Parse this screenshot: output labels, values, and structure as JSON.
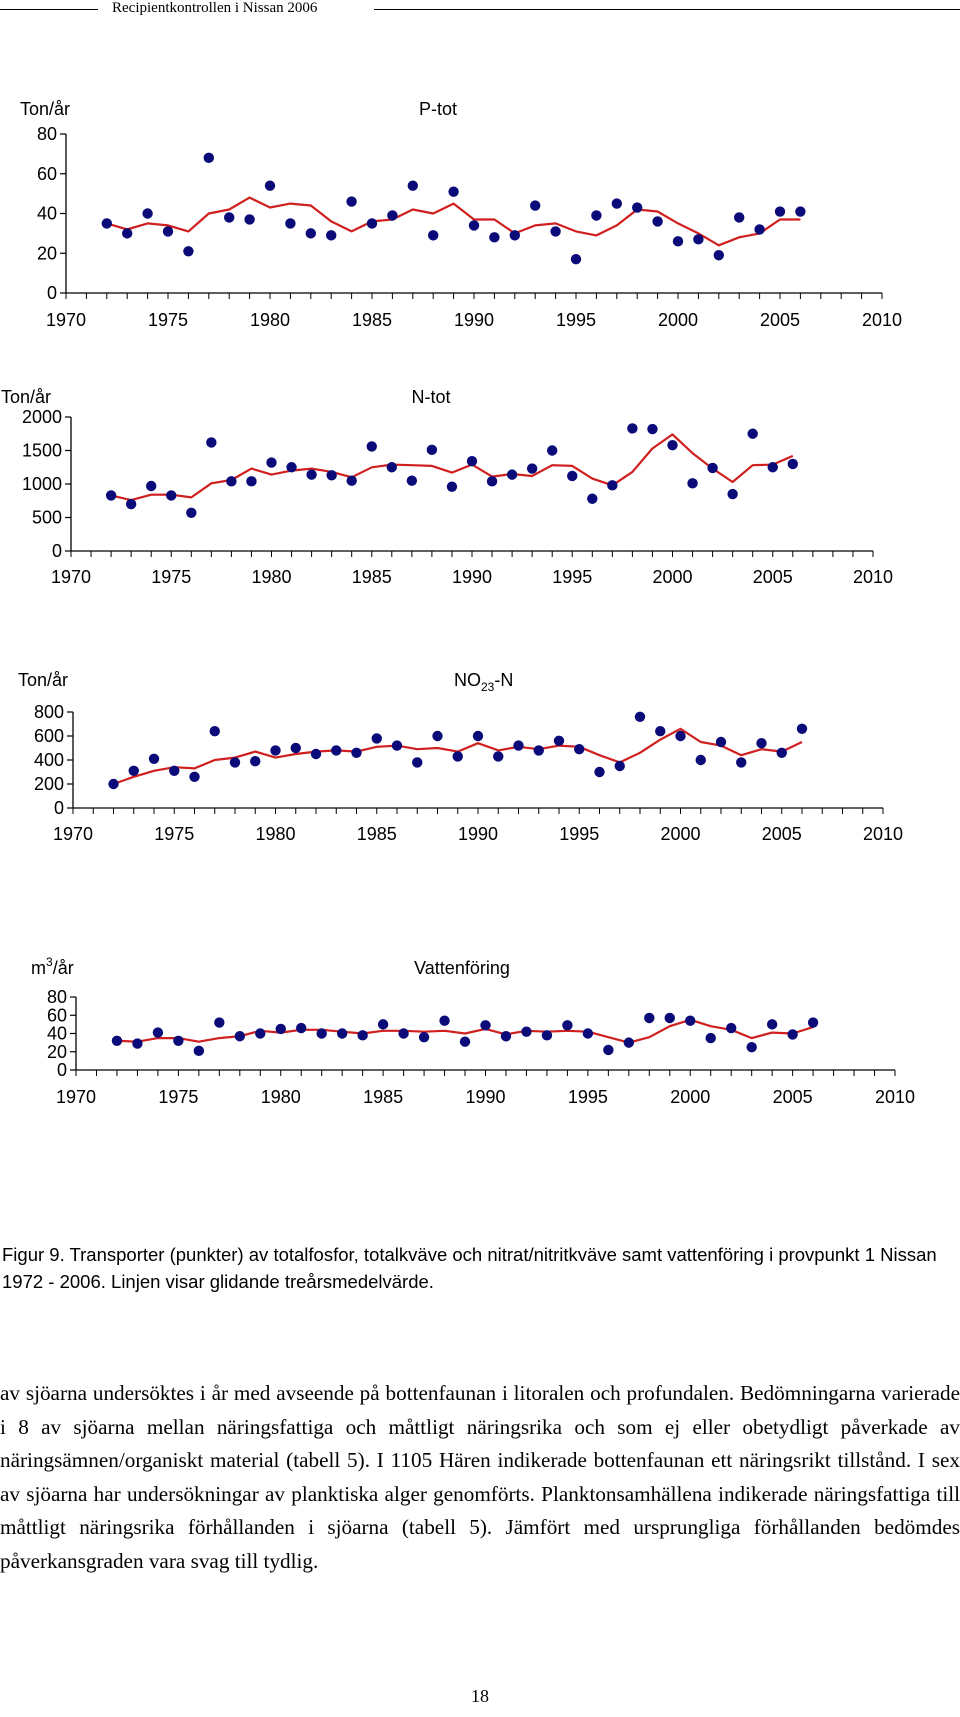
{
  "header": {
    "title": "Recipientkontrollen i Nissan 2006"
  },
  "chart_data": [
    {
      "type": "scatter",
      "title": "P-tot",
      "ylabel": "Ton/år",
      "xlim": [
        1970,
        2010
      ],
      "ylim": [
        0,
        80
      ],
      "yticks": [
        0,
        20,
        40,
        60,
        80
      ],
      "xticks": [
        1970,
        1975,
        1980,
        1985,
        1990,
        1995,
        2000,
        2005,
        2010
      ],
      "series": [
        {
          "name": "Transporter (punkter)",
          "years": [
            1972,
            1973,
            1974,
            1975,
            1976,
            1977,
            1978,
            1979,
            1980,
            1981,
            1982,
            1983,
            1984,
            1985,
            1986,
            1987,
            1988,
            1989,
            1990,
            1991,
            1992,
            1993,
            1994,
            1995,
            1996,
            1997,
            1998,
            1999,
            2000,
            2001,
            2002,
            2003,
            2004,
            2005,
            2006
          ],
          "values": [
            35,
            30,
            40,
            31,
            21,
            68,
            38,
            37,
            54,
            35,
            30,
            29,
            46,
            35,
            39,
            54,
            29,
            51,
            34,
            28,
            29,
            44,
            31,
            17,
            39,
            45,
            43,
            36,
            26,
            27,
            19,
            38,
            32,
            41,
            41
          ]
        },
        {
          "name": "Glidande treårsmedelvärde",
          "years": [
            1972,
            1973,
            1974,
            1975,
            1976,
            1977,
            1978,
            1979,
            1980,
            1981,
            1982,
            1983,
            1984,
            1985,
            1986,
            1987,
            1988,
            1989,
            1990,
            1991,
            1992,
            1993,
            1994,
            1995,
            1996,
            1997,
            1998,
            1999,
            2000,
            2001,
            2002,
            2003,
            2004,
            2005,
            2006
          ],
          "values": [
            35,
            32,
            35,
            34,
            31,
            40,
            42,
            48,
            43,
            45,
            44,
            36,
            31,
            36,
            37,
            42,
            40,
            45,
            37,
            37,
            30,
            34,
            35,
            31,
            29,
            34,
            42,
            41,
            35,
            30,
            24,
            28,
            30,
            37,
            37
          ]
        }
      ]
    },
    {
      "type": "scatter",
      "title": "N-tot",
      "ylabel": "Ton/år",
      "xlim": [
        1970,
        2010
      ],
      "ylim": [
        0,
        2000
      ],
      "yticks": [
        0,
        500,
        1000,
        1500,
        2000
      ],
      "xticks": [
        1970,
        1975,
        1980,
        1985,
        1990,
        1995,
        2000,
        2005,
        2010
      ],
      "series": [
        {
          "name": "Transporter (punkter)",
          "years": [
            1972,
            1973,
            1974,
            1975,
            1976,
            1977,
            1978,
            1979,
            1980,
            1981,
            1982,
            1983,
            1984,
            1985,
            1986,
            1987,
            1988,
            1989,
            1990,
            1991,
            1992,
            1993,
            1994,
            1995,
            1996,
            1997,
            1998,
            1999,
            2000,
            2001,
            2002,
            2003,
            2004,
            2005,
            2006
          ],
          "values": [
            830,
            700,
            970,
            830,
            570,
            1620,
            1040,
            1040,
            1320,
            1250,
            1140,
            1130,
            1050,
            1560,
            1250,
            1050,
            1510,
            960,
            1340,
            1040,
            1140,
            1230,
            1500,
            1120,
            780,
            980,
            1830,
            1820,
            1580,
            1010,
            1240,
            850,
            1750,
            1250,
            1300
          ]
        },
        {
          "name": "Glidande treårsmedelvärde",
          "years": [
            1972,
            1973,
            1974,
            1975,
            1976,
            1977,
            1978,
            1979,
            1980,
            1981,
            1982,
            1983,
            1984,
            1985,
            1986,
            1987,
            1988,
            1989,
            1990,
            1991,
            1992,
            1993,
            1994,
            1995,
            1996,
            1997,
            1998,
            1999,
            2000,
            2001,
            2002,
            2003,
            2004,
            2005,
            2006
          ],
          "values": [
            830,
            760,
            840,
            840,
            800,
            1010,
            1060,
            1230,
            1140,
            1200,
            1230,
            1180,
            1100,
            1250,
            1290,
            1280,
            1270,
            1170,
            1290,
            1110,
            1150,
            1120,
            1280,
            1270,
            1080,
            980,
            1180,
            1530,
            1740,
            1460,
            1230,
            1030,
            1280,
            1290,
            1420
          ]
        }
      ]
    },
    {
      "type": "scatter",
      "title": "NO",
      "title_sub": "23",
      "title_suffix": "-N",
      "ylabel": "Ton/år",
      "xlim": [
        1970,
        2010
      ],
      "ylim": [
        0,
        800
      ],
      "yticks": [
        0,
        200,
        400,
        600,
        800
      ],
      "xticks": [
        1970,
        1975,
        1980,
        1985,
        1990,
        1995,
        2000,
        2005,
        2010
      ],
      "series": [
        {
          "name": "Transporter (punkter)",
          "years": [
            1972,
            1973,
            1974,
            1975,
            1976,
            1977,
            1978,
            1979,
            1980,
            1981,
            1982,
            1983,
            1984,
            1985,
            1986,
            1987,
            1988,
            1989,
            1990,
            1991,
            1992,
            1993,
            1994,
            1995,
            1996,
            1997,
            1998,
            1999,
            2000,
            2001,
            2002,
            2003,
            2004,
            2005,
            2006
          ],
          "values": [
            200,
            310,
            410,
            310,
            260,
            640,
            380,
            390,
            480,
            500,
            450,
            480,
            460,
            580,
            520,
            380,
            600,
            430,
            600,
            430,
            520,
            480,
            560,
            490,
            300,
            350,
            760,
            640,
            600,
            400,
            550,
            380,
            540,
            460,
            660
          ]
        },
        {
          "name": "Glidande treårsmedelvärde",
          "years": [
            1972,
            1973,
            1974,
            1975,
            1976,
            1977,
            1978,
            1979,
            1980,
            1981,
            1982,
            1983,
            1984,
            1985,
            1986,
            1987,
            1988,
            1989,
            1990,
            1991,
            1992,
            1993,
            1994,
            1995,
            1996,
            1997,
            1998,
            1999,
            2000,
            2001,
            2002,
            2003,
            2004,
            2005,
            2006
          ],
          "values": [
            200,
            260,
            310,
            340,
            330,
            400,
            420,
            470,
            420,
            450,
            470,
            480,
            470,
            510,
            520,
            490,
            500,
            470,
            540,
            480,
            510,
            490,
            520,
            510,
            440,
            380,
            460,
            570,
            660,
            550,
            520,
            440,
            490,
            470,
            550
          ]
        }
      ]
    },
    {
      "type": "scatter",
      "title": "Vattenföring",
      "ylabel_base": "m",
      "ylabel_sup": "3",
      "ylabel_suffix": "/år",
      "xlim": [
        1970,
        2010
      ],
      "ylim": [
        0,
        80
      ],
      "yticks": [
        0,
        20,
        40,
        60,
        80
      ],
      "xticks": [
        1970,
        1975,
        1980,
        1985,
        1990,
        1995,
        2000,
        2005,
        2010
      ],
      "series": [
        {
          "name": "Transporter (punkter)",
          "years": [
            1972,
            1973,
            1974,
            1975,
            1976,
            1977,
            1978,
            1979,
            1980,
            1981,
            1982,
            1983,
            1984,
            1985,
            1986,
            1987,
            1988,
            1989,
            1990,
            1991,
            1992,
            1993,
            1994,
            1995,
            1996,
            1997,
            1998,
            1999,
            2000,
            2001,
            2002,
            2003,
            2004,
            2005,
            2006
          ],
          "values": [
            32,
            29,
            41,
            32,
            21,
            52,
            37,
            40,
            45,
            46,
            40,
            40,
            38,
            50,
            40,
            36,
            54,
            31,
            49,
            37,
            42,
            38,
            49,
            40,
            22,
            30,
            57,
            57,
            54,
            35,
            46,
            25,
            50,
            39,
            52
          ]
        },
        {
          "name": "Glidande treårsmedelvärde",
          "years": [
            1972,
            1973,
            1974,
            1975,
            1976,
            1977,
            1978,
            1979,
            1980,
            1981,
            1982,
            1983,
            1984,
            1985,
            1986,
            1987,
            1988,
            1989,
            1990,
            1991,
            1992,
            1993,
            1994,
            1995,
            1996,
            1997,
            1998,
            1999,
            2000,
            2001,
            2002,
            2003,
            2004,
            2005,
            2006
          ],
          "values": [
            32,
            31,
            35,
            35,
            31,
            35,
            37,
            43,
            41,
            44,
            44,
            42,
            40,
            43,
            43,
            42,
            43,
            40,
            45,
            39,
            43,
            42,
            43,
            42,
            36,
            30,
            36,
            48,
            55,
            48,
            44,
            35,
            41,
            40,
            47
          ]
        }
      ]
    }
  ],
  "figure": {
    "caption": "Figur 9. Transporter (punkter) av totalfosfor, totalkväve och nitrat/nitritkväve samt vattenföring i provpunkt 1 Nissan 1972 - 2006. Linjen visar glidande treårsmedelvärde."
  },
  "body": {
    "paragraph": "av sjöarna undersöktes i år med avseende på bottenfaunan i litoralen och profundalen. Bedömningarna varierade i 8 av sjöarna mellan näringsfattiga och måttligt näringsrika och som ej eller obetydligt påverkade av näringsämnen/organiskt material (tabell 5). I 1105 Hären indikerade bottenfaunan ett näringsrikt tillstånd. I sex av sjöarna har undersökningar av planktiska alger genomförts. Planktonsamhällena indikerade näringsfattiga till måttligt näringsrika förhållanden i sjöarna (tabell 5). Jämfört med ursprungliga förhållanden bedömdes påverkansgraden vara svag till tydlig."
  },
  "page_number": "18",
  "colors": {
    "points": "#0a0a78",
    "line": "#d01f1f",
    "axis": "#000000"
  }
}
